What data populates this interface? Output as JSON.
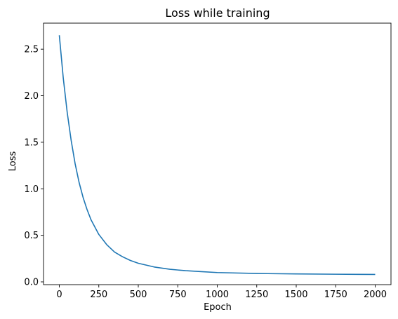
{
  "chart_data": {
    "type": "line",
    "title": "Loss while training",
    "xlabel": "Epoch",
    "ylabel": "Loss",
    "xlim": [
      -100,
      2100
    ],
    "ylim": [
      -0.03,
      2.78
    ],
    "xticks": [
      0,
      250,
      500,
      750,
      1000,
      1250,
      1500,
      1750,
      2000
    ],
    "xtick_labels": [
      "0",
      "250",
      "500",
      "750",
      "1000",
      "1250",
      "1500",
      "1750",
      "2000"
    ],
    "yticks": [
      0.0,
      0.5,
      1.0,
      1.5,
      2.0,
      2.5
    ],
    "ytick_labels": [
      "0.0",
      "0.5",
      "1.0",
      "1.5",
      "2.0",
      "2.5"
    ],
    "grid": false,
    "series": [
      {
        "color": "#1f77b4",
        "x": [
          0,
          25,
          50,
          75,
          100,
          125,
          150,
          175,
          200,
          250,
          300,
          350,
          400,
          450,
          500,
          600,
          700,
          800,
          900,
          1000,
          1250,
          1500,
          1750,
          2000
        ],
        "y": [
          2.65,
          2.19,
          1.82,
          1.52,
          1.27,
          1.07,
          0.91,
          0.78,
          0.67,
          0.51,
          0.4,
          0.32,
          0.27,
          0.23,
          0.2,
          0.16,
          0.135,
          0.12,
          0.11,
          0.1,
          0.09,
          0.085,
          0.082,
          0.08
        ]
      }
    ]
  }
}
